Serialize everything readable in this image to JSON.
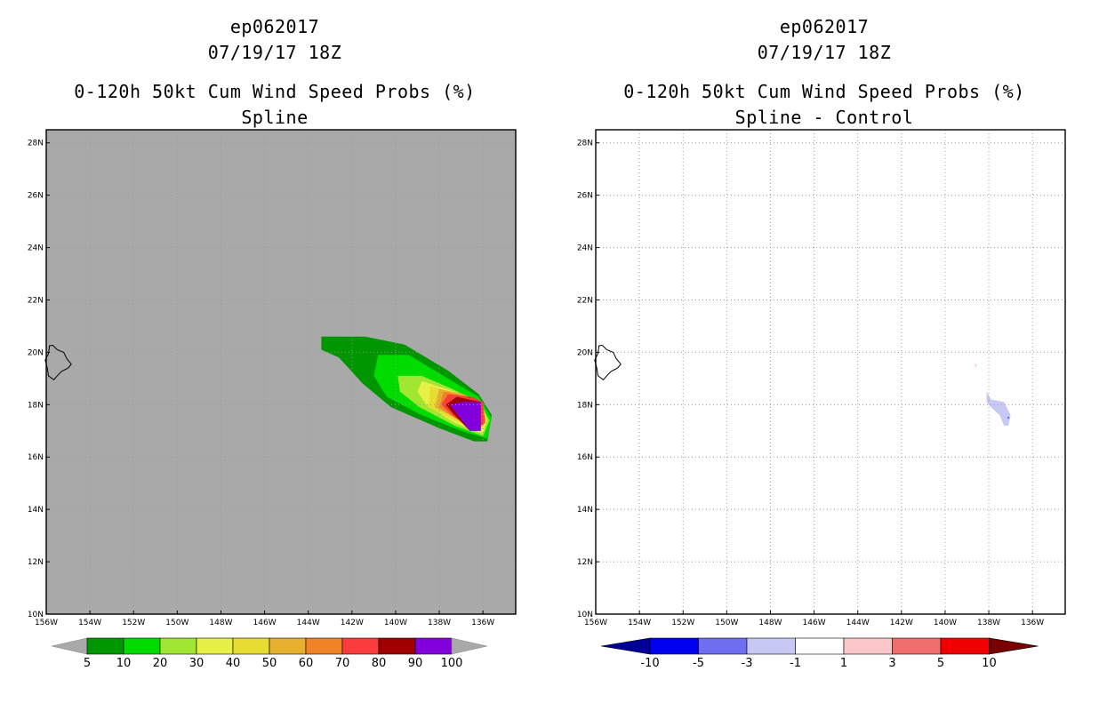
{
  "chart_data": [
    {
      "type": "map-filled-contour",
      "storm_id": "ep062017",
      "datetime": "07/19/17 18Z",
      "title": "0-120h 50kt Cum Wind Speed Probs (%)",
      "subtitle": "Spline",
      "x_ticks": [
        "156W",
        "154W",
        "152W",
        "150W",
        "148W",
        "146W",
        "144W",
        "142W",
        "140W",
        "138W",
        "136W"
      ],
      "y_ticks": [
        "10N",
        "12N",
        "14N",
        "16N",
        "18N",
        "20N",
        "22N",
        "24N",
        "26N",
        "28N"
      ],
      "xlim": [
        -156,
        -134.5
      ],
      "ylim": [
        10,
        28.5
      ],
      "background": "#a9a9a9",
      "grid": true,
      "colorbar": {
        "labels": [
          "5",
          "10",
          "20",
          "30",
          "40",
          "50",
          "60",
          "70",
          "80",
          "90",
          "100"
        ],
        "colors": [
          "#009600",
          "#00dc00",
          "#a0e632",
          "#e6f046",
          "#e6dc32",
          "#e6af2d",
          "#f08228",
          "#fa3c3c",
          "#a00000",
          "#8200dc"
        ],
        "extend_colors": [
          "#a9a9a9",
          "#a9a9a9"
        ]
      },
      "contours": [
        {
          "level": "5-10",
          "color": "#009600",
          "lonlat": [
            [
              -143.4,
              20.6
            ],
            [
              -141.4,
              20.6
            ],
            [
              -139.6,
              20.3
            ],
            [
              -137.6,
              19.3
            ],
            [
              -136.2,
              18.4
            ],
            [
              -135.6,
              17.6
            ],
            [
              -135.8,
              16.6
            ],
            [
              -136.4,
              16.6
            ],
            [
              -138,
              17.1
            ],
            [
              -140.2,
              17.9
            ],
            [
              -141.5,
              18.8
            ],
            [
              -142.6,
              19.8
            ],
            [
              -143.4,
              20.1
            ]
          ]
        },
        {
          "level": "10-20",
          "color": "#00dc00",
          "lonlat": [
            [
              -140.8,
              19.9
            ],
            [
              -139.4,
              19.9
            ],
            [
              -137.6,
              19.0
            ],
            [
              -136.2,
              18.3
            ],
            [
              -135.6,
              17.5
            ],
            [
              -135.8,
              16.7
            ],
            [
              -137.0,
              17.0
            ],
            [
              -138.8,
              17.6
            ],
            [
              -140.4,
              18.3
            ],
            [
              -141.0,
              19.1
            ]
          ]
        },
        {
          "level": "20-30",
          "color": "#a0e632",
          "lonlat": [
            [
              -139.9,
              19.1
            ],
            [
              -138.8,
              19.1
            ],
            [
              -137.4,
              18.6
            ],
            [
              -136.2,
              18.1
            ],
            [
              -135.7,
              17.4
            ],
            [
              -136.0,
              16.8
            ],
            [
              -137.3,
              17.2
            ],
            [
              -138.9,
              17.9
            ],
            [
              -139.8,
              18.5
            ]
          ]
        },
        {
          "level": "30-40",
          "color": "#e6f046",
          "lonlat": [
            [
              -138.8,
              18.9
            ],
            [
              -137.3,
              18.5
            ],
            [
              -136.1,
              18.1
            ],
            [
              -135.8,
              17.5
            ],
            [
              -136.0,
              16.9
            ],
            [
              -137.3,
              17.3
            ],
            [
              -138.6,
              18.0
            ],
            [
              -139.0,
              18.5
            ]
          ]
        },
        {
          "level": "40-50",
          "color": "#e6dc32",
          "lonlat": [
            [
              -138.4,
              18.7
            ],
            [
              -137.1,
              18.4
            ],
            [
              -136.1,
              18.1
            ],
            [
              -135.8,
              17.5
            ],
            [
              -136.1,
              17.0
            ],
            [
              -137.3,
              17.4
            ],
            [
              -138.5,
              17.9
            ]
          ]
        },
        {
          "level": "50-60",
          "color": "#e6af2d",
          "lonlat": [
            [
              -138.0,
              18.6
            ],
            [
              -136.9,
              18.4
            ],
            [
              -136.1,
              18.1
            ],
            [
              -135.9,
              17.5
            ],
            [
              -136.2,
              17.0
            ],
            [
              -137.3,
              17.5
            ],
            [
              -138.2,
              17.9
            ]
          ]
        },
        {
          "level": "60-70",
          "color": "#f08228",
          "lonlat": [
            [
              -137.8,
              18.5
            ],
            [
              -136.7,
              18.3
            ],
            [
              -136.1,
              18.1
            ],
            [
              -135.9,
              17.4
            ],
            [
              -136.3,
              17.1
            ],
            [
              -137.3,
              17.5
            ],
            [
              -138.0,
              17.9
            ]
          ]
        },
        {
          "level": "70-80",
          "color": "#fa3c3c",
          "lonlat": [
            [
              -137.6,
              18.4
            ],
            [
              -136.5,
              18.3
            ],
            [
              -136.0,
              18.1
            ],
            [
              -135.9,
              17.3
            ],
            [
              -136.4,
              17.0
            ],
            [
              -137.4,
              17.6
            ],
            [
              -137.9,
              18.0
            ]
          ]
        },
        {
          "level": "80-90",
          "color": "#a00000",
          "lonlat": [
            [
              -137.2,
              18.3
            ],
            [
              -136.1,
              18.1
            ],
            [
              -136.1,
              17.0
            ],
            [
              -136.6,
              17.0
            ],
            [
              -137.3,
              17.6
            ],
            [
              -137.7,
              18.0
            ]
          ]
        },
        {
          "level": "90-100",
          "color": "#8200dc",
          "lonlat": [
            [
              -137.0,
              18.1
            ],
            [
              -136.1,
              18.1
            ],
            [
              -136.1,
              17.0
            ],
            [
              -136.6,
              17.0
            ],
            [
              -137.5,
              18.0
            ]
          ]
        }
      ]
    },
    {
      "type": "map-filled-contour",
      "storm_id": "ep062017",
      "datetime": "07/19/17 18Z",
      "title": "0-120h 50kt Cum Wind Speed Probs (%)",
      "subtitle": "Spline - Control",
      "x_ticks": [
        "156W",
        "154W",
        "152W",
        "150W",
        "148W",
        "146W",
        "144W",
        "142W",
        "140W",
        "138W",
        "136W"
      ],
      "y_ticks": [
        "10N",
        "12N",
        "14N",
        "16N",
        "18N",
        "20N",
        "22N",
        "24N",
        "26N",
        "28N"
      ],
      "xlim": [
        -156,
        -134.5
      ],
      "ylim": [
        10,
        28.5
      ],
      "background": "#ffffff",
      "grid": true,
      "colorbar": {
        "labels": [
          "-10",
          "-5",
          "-3",
          "-1",
          "1",
          "3",
          "5",
          "10"
        ],
        "colors": [
          "#0000f0",
          "#6e6ef0",
          "#c8c8f5",
          "#ffffff",
          "#fac8c8",
          "#f06e6e",
          "#f00000"
        ],
        "extend_colors": [
          "#000096",
          "#780000"
        ]
      },
      "contours": [
        {
          "level": "-3 to -1",
          "color": "#c8c8f5",
          "lonlat": [
            [
              -138.1,
              18.5
            ],
            [
              -137.9,
              18.2
            ],
            [
              -137.3,
              18.1
            ],
            [
              -137.0,
              17.6
            ],
            [
              -137.1,
              17.2
            ],
            [
              -137.3,
              17.2
            ],
            [
              -137.5,
              17.6
            ],
            [
              -137.9,
              17.9
            ],
            [
              -138.1,
              18.1
            ]
          ]
        },
        {
          "level": "1 to 3",
          "color": "#fac8c8",
          "lonlat": [
            [
              -138.63,
              19.55
            ],
            [
              -138.55,
              19.55
            ],
            [
              -138.55,
              19.45
            ],
            [
              -138.63,
              19.45
            ]
          ]
        }
      ]
    }
  ]
}
